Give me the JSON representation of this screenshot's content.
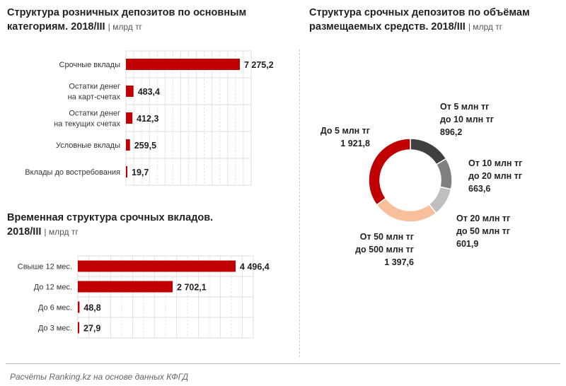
{
  "chart_data": [
    {
      "type": "bar",
      "orientation": "horizontal",
      "title": "Структура розничных депозитов по основным категориям. 2018/III",
      "unit": "млрд тг",
      "categories": [
        "Срочные вклады",
        "Остатки денег на карт-счетах",
        "Остатки денег на текущих счетах",
        "Условные вклады",
        "Вклады до востребования"
      ],
      "labels": [
        [
          "Срочные вклады"
        ],
        [
          "Остатки денег",
          "на карт-счетах"
        ],
        [
          "Остатки денег",
          "на текущих счетах"
        ],
        [
          "Условные вклады"
        ],
        [
          "Вклады до востребования"
        ]
      ],
      "values": [
        7275.2,
        483.4,
        412.3,
        259.5,
        19.7
      ],
      "display": [
        "7 275,2",
        "483,4",
        "412,3",
        "259,5",
        "19,7"
      ],
      "xlim": [
        0,
        8000
      ],
      "color": "#c00000",
      "grid": true
    },
    {
      "type": "bar",
      "orientation": "horizontal",
      "title": "Временная структура срочных вкладов. 2018/III",
      "unit": "млрд тг",
      "categories": [
        "Свыше 12 мес.",
        "До 12 мес.",
        "До 6 мес.",
        "До 3 мес."
      ],
      "values": [
        4496.4,
        2702.1,
        48.8,
        27.9
      ],
      "display": [
        "4 496,4",
        "2 702,1",
        "48,8",
        "27,9"
      ],
      "xlim": [
        0,
        5000
      ],
      "color": "#c00000",
      "grid": true
    },
    {
      "type": "pie",
      "donut": true,
      "title": "Структура срочных депозитов по объёмам размещаемых средств. 2018/III",
      "unit": "млрд тг",
      "slices": [
        {
          "label": [
            "От 5 млн тг",
            "до 10 млн тг"
          ],
          "value": 896.2,
          "display": "896,2",
          "color": "#404040"
        },
        {
          "label": [
            "От 10 млн тг",
            "до 20 млн тг"
          ],
          "value": 663.6,
          "display": "663,6",
          "color": "#7f7f7f"
        },
        {
          "label": [
            "От 20 млн тг",
            "до 50 млн тг"
          ],
          "value": 601.9,
          "display": "601,9",
          "color": "#bfbfbf"
        },
        {
          "label": [
            "От 50 млн тг",
            "до 500 млн тг"
          ],
          "value": 1397.6,
          "display": "1 397,6",
          "color": "#f8c09a"
        },
        {
          "label": [
            "До 5 млн тг"
          ],
          "value": 1921.8,
          "display": "1 921,8",
          "color": "#c00000"
        }
      ]
    }
  ],
  "titles": {
    "t1a": "Структура розничных депозитов по основным",
    "t1b": "категориям. 2018/III",
    "t2a": "Временная структура срочных вкладов.",
    "t2b": "2018/III",
    "t3a": "Структура срочных депозитов по объёмам",
    "t3b": "размещаемых средств. 2018/III",
    "unit": "| млрд тг"
  },
  "footer": "Расчёты Ranking.kz на основе данных КФГД"
}
